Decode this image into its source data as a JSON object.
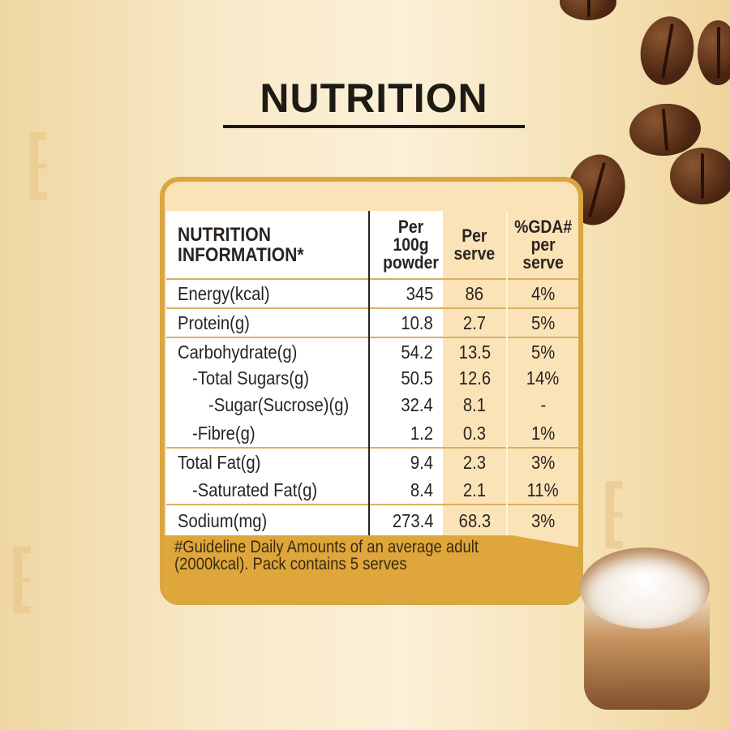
{
  "title": "NUTRITION",
  "table": {
    "headers": [
      "NUTRITION INFORMATION*",
      "Per 100g powder",
      "Per serve",
      "%GDA# per serve"
    ],
    "rows": [
      {
        "label": "Energy(kcal)",
        "per100g": "345",
        "serve": "86",
        "gda": "4%"
      },
      {
        "label": "Protein(g)",
        "per100g": "10.8",
        "serve": "2.7",
        "gda": "5%"
      },
      {
        "label": "Carbohydrate(g)",
        "per100g": "54.2",
        "serve": "13.5",
        "gda": "5%"
      },
      {
        "label": "-Total Sugars(g)",
        "per100g": "50.5",
        "serve": "12.6",
        "gda": "14%"
      },
      {
        "label": "-Sugar(Sucrose)(g)",
        "per100g": "32.4",
        "serve": "8.1",
        "gda": "-"
      },
      {
        "label": "-Fibre(g)",
        "per100g": "1.2",
        "serve": "0.3",
        "gda": "1%"
      },
      {
        "label": "Total Fat(g)",
        "per100g": "9.4",
        "serve": "2.3",
        "gda": "3%"
      },
      {
        "label": "-Saturated Fat(g)",
        "per100g": "8.4",
        "serve": "2.1",
        "gda": "11%"
      },
      {
        "label": "Sodium(mg)",
        "per100g": "273.4",
        "serve": "68.3",
        "gda": "3%"
      }
    ]
  },
  "footnote": [
    "#Guideline Daily Amounts of an average adult",
    "(2000kcal). Pack contains 5 serves"
  ],
  "colors": {
    "gold": "#d9a640",
    "peach": "#fbe3b8",
    "text": "#2a2420"
  }
}
